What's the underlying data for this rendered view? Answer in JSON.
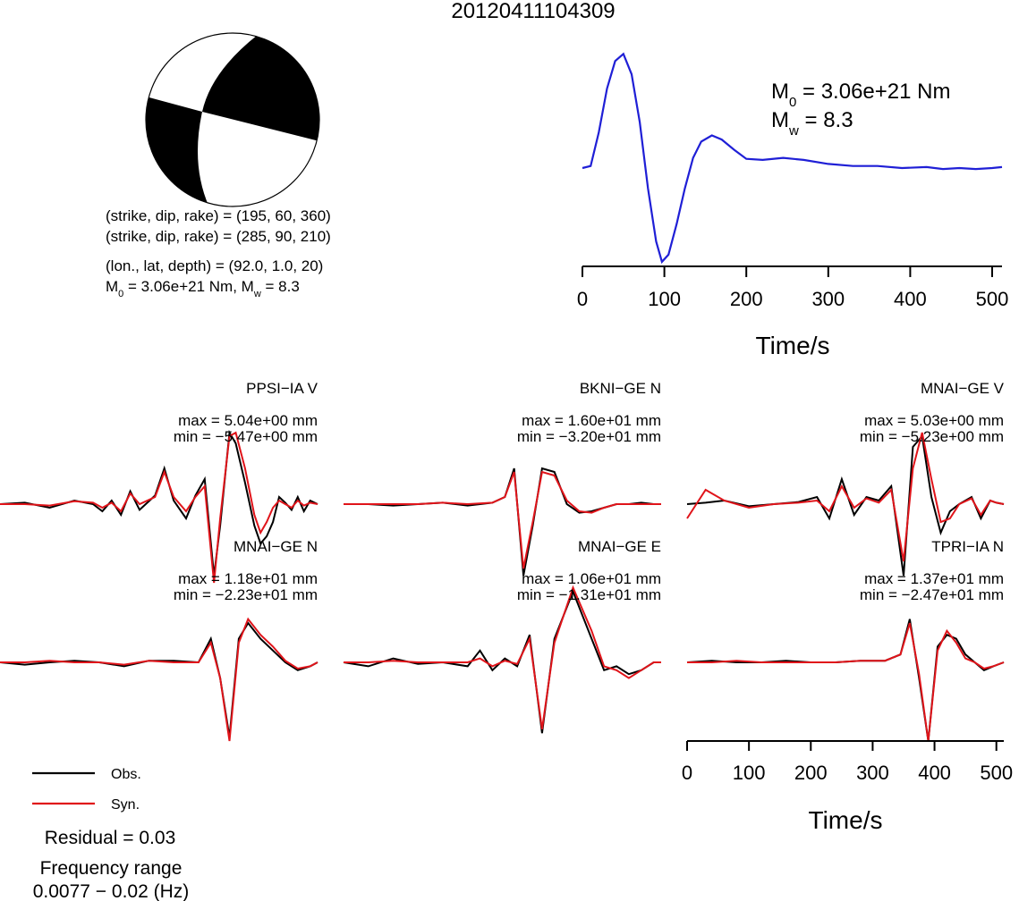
{
  "title": "20120411104309",
  "mechanism": {
    "plane1": "(strike, dip, rake) = (195, 60, 360)",
    "plane2": "(strike, dip, rake) = (285, 90, 210)",
    "location": "(lon., lat, depth) = (92.0, 1.0, 20)",
    "m0_text": "3.06e+21 Nm",
    "mw_text": "8.3"
  },
  "colors": {
    "stf": "#1f1fd6",
    "obs": "#000000",
    "syn": "#e0141a",
    "beach_fill": "#000000"
  },
  "legend": {
    "obs_label": "Obs.",
    "syn_label": "Syn."
  },
  "residual": "Residual = 0.03",
  "frequency": {
    "label": "Frequency range",
    "value": "0.0077 − 0.02 (Hz)"
  },
  "chart_data": [
    {
      "type": "line",
      "name": "source-time-function",
      "xlabel": "Time/s",
      "ylabel": "",
      "xlim": [
        0,
        512
      ],
      "xticks": [
        0,
        100,
        200,
        300,
        400,
        500
      ],
      "annotations": [
        "M0 = 3.06e+21 Nm",
        "Mw = 8.3"
      ],
      "series": [
        {
          "x": [
            0,
            10,
            20,
            30,
            40,
            50,
            60,
            70,
            80,
            90,
            97,
            105,
            115,
            125,
            135,
            145,
            158,
            170,
            185,
            200,
            220,
            245,
            270,
            300,
            330,
            360,
            390,
            420,
            440,
            460,
            480,
            500,
            512
          ],
          "y": [
            0.0,
            0.02,
            0.35,
            0.78,
            1.05,
            1.12,
            0.92,
            0.45,
            -0.2,
            -0.72,
            -0.92,
            -0.85,
            -0.55,
            -0.2,
            0.1,
            0.26,
            0.32,
            0.28,
            0.18,
            0.09,
            0.08,
            0.1,
            0.08,
            0.04,
            0.02,
            0.02,
            0.0,
            0.01,
            -0.01,
            0.0,
            -0.01,
            0.0,
            0.01
          ]
        }
      ]
    },
    {
      "type": "line",
      "name": "waveform-fits",
      "xlabel": "Time/s",
      "xlim": [
        0,
        512
      ],
      "xticks": [
        0,
        100,
        200,
        300,
        400,
        500
      ],
      "panels": [
        {
          "station": "PPSI−IA V",
          "max_text": "max = 5.04e+00 mm",
          "min_text": "min = −5.47e+00 mm",
          "x": [
            0,
            40,
            80,
            120,
            150,
            165,
            180,
            195,
            210,
            225,
            250,
            265,
            280,
            300,
            315,
            330,
            345,
            355,
            370,
            380,
            395,
            410,
            420,
            430,
            440,
            450,
            460,
            470,
            480,
            490,
            500,
            512
          ],
          "obs": [
            0,
            0.02,
            -0.05,
            0.05,
            0.0,
            -0.1,
            0.05,
            -0.15,
            0.18,
            -0.08,
            0.12,
            0.5,
            0.05,
            -0.2,
            0.12,
            0.35,
            -1.0,
            -0.3,
            1.0,
            0.85,
            0.3,
            -0.3,
            -0.55,
            -0.45,
            -0.25,
            0.1,
            0.02,
            -0.08,
            0.1,
            -0.1,
            0.05,
            0.0
          ],
          "syn": [
            0,
            0.0,
            -0.02,
            0.04,
            0.02,
            -0.05,
            0.02,
            -0.1,
            0.15,
            0.0,
            0.1,
            0.45,
            0.1,
            -0.1,
            0.1,
            0.25,
            -1.1,
            -0.2,
            0.95,
            1.0,
            0.5,
            -0.15,
            -0.4,
            -0.25,
            -0.05,
            0.05,
            0.0,
            -0.05,
            0.05,
            -0.02,
            0.02,
            0.0
          ]
        },
        {
          "station": "BKNI−GE N",
          "max_text": "max = 1.60e+01 mm",
          "min_text": "min = −3.20e+01 mm",
          "x": [
            0,
            40,
            80,
            120,
            160,
            200,
            240,
            260,
            275,
            290,
            305,
            320,
            340,
            360,
            380,
            400,
            420,
            440,
            460,
            480,
            500,
            512
          ],
          "obs": [
            0,
            0.0,
            -0.02,
            0.0,
            0.02,
            -0.02,
            0.02,
            0.1,
            0.5,
            -1.0,
            -0.3,
            0.5,
            0.45,
            0.0,
            -0.12,
            -0.1,
            -0.05,
            0.0,
            0.0,
            0.02,
            0.0,
            0.0
          ],
          "syn": [
            0,
            0.0,
            0.0,
            0.0,
            0.02,
            0.0,
            0.02,
            0.1,
            0.45,
            -0.9,
            -0.25,
            0.45,
            0.4,
            0.05,
            -0.1,
            -0.12,
            -0.05,
            0.0,
            0.0,
            0.0,
            0.0,
            0.0
          ]
        },
        {
          "station": "MNAI−GE V",
          "max_text": "max = 5.03e+00 mm",
          "min_text": "min = −5.23e+00 mm",
          "x": [
            0,
            30,
            60,
            100,
            140,
            180,
            210,
            230,
            250,
            270,
            290,
            310,
            330,
            350,
            365,
            380,
            395,
            410,
            425,
            440,
            460,
            475,
            490,
            500,
            512
          ],
          "obs": [
            0,
            0.02,
            0.05,
            -0.03,
            0.0,
            0.03,
            0.1,
            -0.2,
            0.35,
            -0.15,
            0.1,
            0.05,
            0.25,
            -1.0,
            0.8,
            0.95,
            0.1,
            -0.4,
            -0.1,
            0.0,
            0.1,
            -0.2,
            0.05,
            0.02,
            0.0
          ],
          "syn": [
            -0.2,
            0.2,
            0.05,
            -0.05,
            0.0,
            0.02,
            0.05,
            -0.1,
            0.25,
            -0.05,
            0.08,
            0.02,
            0.2,
            -0.8,
            0.5,
            1.0,
            0.35,
            -0.25,
            -0.2,
            0.0,
            0.08,
            -0.15,
            0.05,
            0.02,
            0.0
          ]
        },
        {
          "station": "MNAI−GE N",
          "max_text": "max = 1.18e+01 mm",
          "min_text": "min = −2.23e+01 mm",
          "x": [
            0,
            40,
            80,
            120,
            160,
            200,
            240,
            280,
            320,
            340,
            355,
            370,
            385,
            400,
            420,
            440,
            460,
            480,
            500,
            512
          ],
          "obs": [
            0,
            -0.03,
            0.0,
            0.02,
            0.0,
            -0.05,
            0.02,
            0.02,
            0.0,
            0.3,
            -0.2,
            -0.95,
            0.3,
            0.5,
            0.3,
            0.15,
            0.0,
            -0.1,
            -0.05,
            0.0
          ],
          "syn": [
            0,
            0.0,
            0.02,
            0.0,
            0.0,
            -0.03,
            0.02,
            0.0,
            0.0,
            0.25,
            -0.2,
            -1.0,
            0.25,
            0.55,
            0.35,
            0.2,
            0.02,
            -0.08,
            -0.05,
            0.0
          ]
        },
        {
          "station": "MNAI−GE E",
          "max_text": "max = 1.06e+01 mm",
          "min_text": "min = −1.31e+01 mm",
          "x": [
            0,
            40,
            80,
            120,
            160,
            200,
            220,
            240,
            260,
            280,
            300,
            320,
            340,
            370,
            400,
            420,
            440,
            460,
            480,
            500,
            512
          ],
          "obs": [
            0,
            -0.05,
            0.05,
            -0.02,
            0.0,
            -0.05,
            0.15,
            -0.1,
            0.05,
            -0.05,
            0.35,
            -0.9,
            0.3,
            0.9,
            0.3,
            -0.1,
            -0.05,
            -0.15,
            -0.1,
            0.0,
            0.0
          ],
          "syn": [
            0,
            0.0,
            0.02,
            0.0,
            0.0,
            0.0,
            0.05,
            -0.05,
            0.02,
            -0.02,
            0.3,
            -0.85,
            0.25,
            0.95,
            0.4,
            -0.05,
            -0.1,
            -0.2,
            -0.1,
            0.0,
            0.0
          ]
        },
        {
          "station": "TPRI−IA N",
          "max_text": "max = 1.37e+01 mm",
          "min_text": "min = −2.47e+01 mm",
          "x": [
            0,
            40,
            80,
            120,
            160,
            200,
            240,
            280,
            320,
            345,
            360,
            375,
            390,
            405,
            420,
            435,
            450,
            465,
            480,
            495,
            512
          ],
          "obs": [
            0,
            0.02,
            0.0,
            0.0,
            0.02,
            0.0,
            0.0,
            0.02,
            0.02,
            0.1,
            0.55,
            -0.2,
            -1.0,
            0.2,
            0.35,
            0.3,
            0.1,
            0.0,
            -0.1,
            -0.05,
            0.0
          ],
          "syn": [
            0,
            0.0,
            0.02,
            0.0,
            0.0,
            0.0,
            0.0,
            0.02,
            0.02,
            0.1,
            0.5,
            -0.15,
            -1.0,
            0.15,
            0.4,
            0.25,
            0.05,
            0.0,
            -0.08,
            -0.05,
            0.0
          ]
        }
      ]
    }
  ]
}
